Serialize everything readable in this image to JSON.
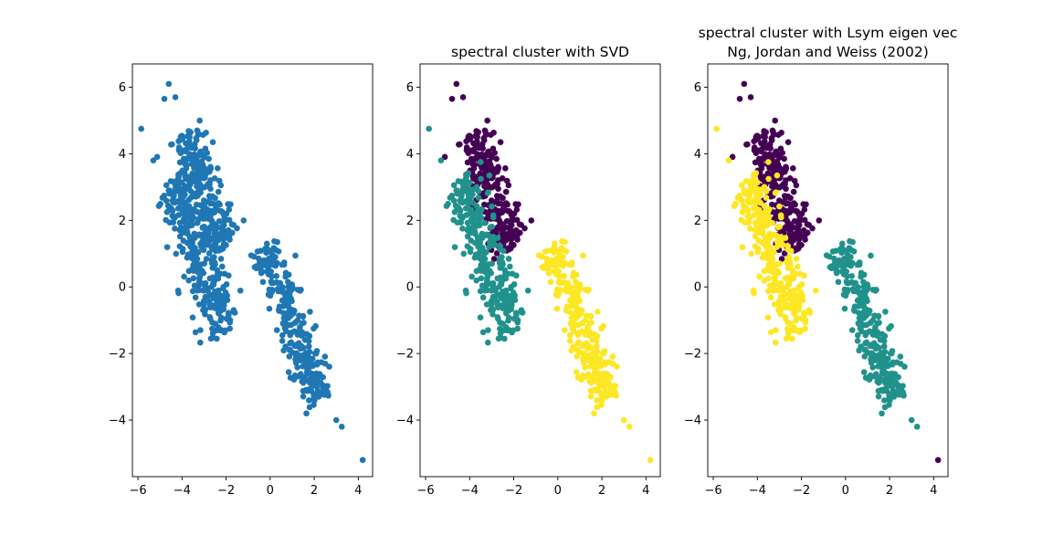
{
  "chart_data": [
    {
      "type": "scatter",
      "title": "",
      "xlabel": "",
      "ylabel": "",
      "xlim": [
        -6.25,
        4.65
      ],
      "ylim": [
        -5.7,
        6.7
      ],
      "xticks": [
        -6,
        -4,
        -2,
        0,
        2,
        4
      ],
      "yticks": [
        6,
        4,
        2,
        0,
        -2,
        -4
      ],
      "xtick_labels": [
        "−6",
        "−4",
        "−2",
        "0",
        "2",
        "4"
      ],
      "ytick_labels": [
        "6",
        "4",
        "2",
        "0",
        "−2",
        "−4"
      ],
      "grid": false,
      "legend": "none",
      "color": "#1f77b4",
      "coloring": "single"
    },
    {
      "type": "scatter",
      "title": "spectral cluster with SVD",
      "xlabel": "",
      "ylabel": "",
      "xlim": [
        -6.25,
        4.65
      ],
      "ylim": [
        -5.7,
        6.7
      ],
      "xticks": [
        -6,
        -4,
        -2,
        0,
        2,
        4
      ],
      "yticks": [
        6,
        4,
        2,
        0,
        -2,
        -4
      ],
      "xtick_labels": [
        "−6",
        "−4",
        "−2",
        "0",
        "2",
        "4"
      ],
      "ytick_labels": [
        "6",
        "4",
        "2",
        "0",
        "−2",
        "−4"
      ],
      "grid": false,
      "legend": "none",
      "cluster_colors": {
        "upper": "#440154",
        "lower": "#21918c",
        "right": "#fde725"
      },
      "coloring": "svd"
    },
    {
      "type": "scatter",
      "title": "spectral cluster with Lsym eigen vec\nNg, Jordan and Weiss (2002)",
      "xlabel": "",
      "ylabel": "",
      "xlim": [
        -6.25,
        4.65
      ],
      "ylim": [
        -5.7,
        6.7
      ],
      "xticks": [
        -6,
        -4,
        -2,
        0,
        2,
        4
      ],
      "yticks": [
        6,
        4,
        2,
        0,
        -2,
        -4
      ],
      "xtick_labels": [
        "−6",
        "−4",
        "−2",
        "0",
        "2",
        "4"
      ],
      "ytick_labels": [
        "6",
        "4",
        "2",
        "0",
        "−2",
        "−4"
      ],
      "grid": false,
      "legend": "none",
      "cluster_colors": {
        "upper": "#440154",
        "lower": "#fde725",
        "right": "#21918c"
      },
      "coloring": "lsym"
    }
  ],
  "clusters": [
    {
      "name": "upper",
      "center": [
        -3.0,
        2.9
      ],
      "direction": [
        0.55,
        -1.0
      ],
      "half_length": 1.95,
      "spread": 0.18,
      "count": 260
    },
    {
      "name": "lower",
      "center": [
        -3.3,
        0.9
      ],
      "direction": [
        0.55,
        -1.0
      ],
      "half_length": 2.6,
      "spread": 0.2,
      "count": 300
    },
    {
      "name": "right",
      "center": [
        1.0,
        -1.1
      ],
      "direction": [
        0.55,
        -1.0
      ],
      "half_length": 2.7,
      "spread": 0.16,
      "count": 300
    }
  ],
  "outliers": [
    {
      "cluster": "upper",
      "x": -4.6,
      "y": 6.1
    },
    {
      "cluster": "upper",
      "x": -4.8,
      "y": 5.65
    },
    {
      "cluster": "upper",
      "x": -4.3,
      "y": 5.7
    },
    {
      "cluster": "lower",
      "x": -5.85,
      "y": 4.75
    },
    {
      "cluster": "lower",
      "x": -5.3,
      "y": 3.8
    },
    {
      "cluster": "right",
      "x": 3.0,
      "y": -4.0
    },
    {
      "cluster": "right",
      "x": 3.25,
      "y": -4.2
    },
    {
      "cluster": "right",
      "x": 4.2,
      "y": -5.2,
      "lsym_cluster": "upper"
    }
  ]
}
